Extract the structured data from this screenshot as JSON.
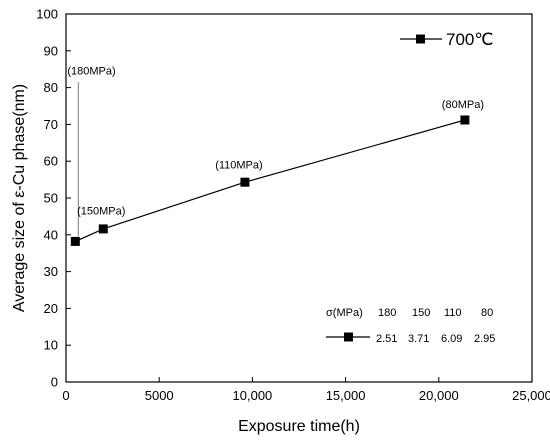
{
  "chart_data": {
    "type": "line",
    "xlabel": "Exposure time(h)",
    "ylabel": "Average size of ε-Cu phase(nm)",
    "xlim": [
      0,
      25000
    ],
    "ylim": [
      0,
      100
    ],
    "x_ticks": [
      "0",
      "5000",
      "10,000",
      "15,000",
      "20,000",
      "25,000"
    ],
    "y_ticks": [
      "0",
      "10",
      "20",
      "30",
      "40",
      "50",
      "60",
      "70",
      "80",
      "90",
      "100"
    ],
    "grid": false,
    "legend": {
      "position": "top-right",
      "entries": [
        "700℃"
      ]
    },
    "series": [
      {
        "name": "700℃",
        "marker": "square",
        "x": [
          500,
          2000,
          9600,
          21400
        ],
        "y": [
          38.2,
          41.6,
          54.3,
          71.2
        ],
        "point_labels": [
          "(180MPa)",
          "(150MPa)",
          "(110MPa)",
          "(80MPa)"
        ]
      }
    ],
    "inset_table": {
      "header_label": "σ(MPa)",
      "header_values": [
        "180",
        "150",
        "110",
        "80"
      ],
      "row_values": [
        "2.51",
        "3.71",
        "6.09",
        "2.95"
      ]
    }
  }
}
